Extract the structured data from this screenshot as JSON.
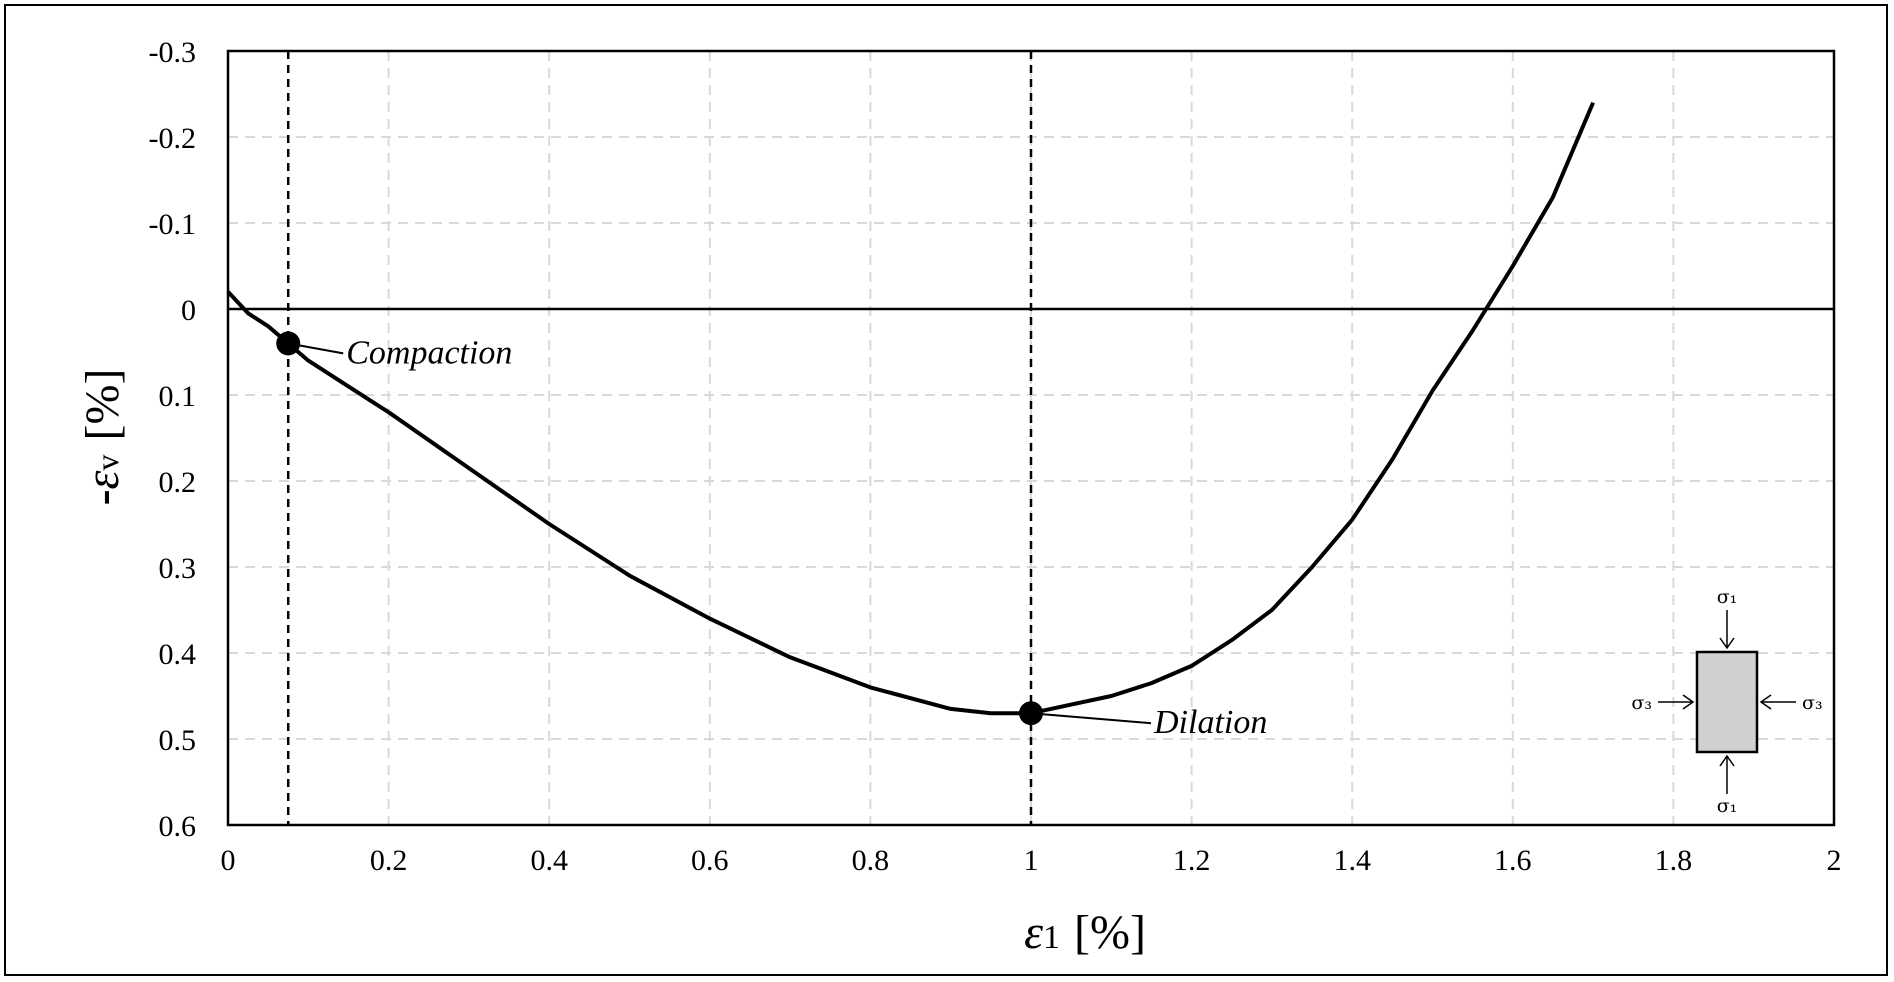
{
  "chart_data": {
    "type": "line",
    "title": "",
    "xlabel": {
      "symbol": "ε",
      "subscript": "1",
      "unit": "[%]"
    },
    "ylabel": {
      "prefix": "-",
      "symbol": "ε",
      "subscript": "v",
      "unit": "[%]"
    },
    "xlim": [
      0,
      2
    ],
    "ylim": [
      -0.3,
      0.6
    ],
    "y_inverted": true,
    "x_ticks": [
      0,
      0.2,
      0.4,
      0.6,
      0.8,
      1,
      1.2,
      1.4,
      1.6,
      1.8,
      2
    ],
    "x_tick_labels": [
      "0",
      "0.2",
      "0.4",
      "0.6",
      "0.8",
      "1",
      "1.2",
      "1.4",
      "1.6",
      "1.8",
      "2"
    ],
    "y_ticks": [
      -0.3,
      -0.2,
      -0.1,
      0,
      0.1,
      0.2,
      0.3,
      0.4,
      0.5,
      0.6
    ],
    "y_tick_labels": [
      "-0.3",
      "-0.2",
      "-0.1",
      "0",
      "0.1",
      "0.2",
      "0.3",
      "0.4",
      "0.5",
      "0.6"
    ],
    "grid": true,
    "zero_line": 0,
    "series": [
      {
        "x": [
          0,
          0.025,
          0.05,
          0.075,
          0.1,
          0.15,
          0.2,
          0.3,
          0.4,
          0.5,
          0.6,
          0.7,
          0.8,
          0.9,
          0.95,
          1.0,
          1.05,
          1.1,
          1.15,
          1.2,
          1.25,
          1.3,
          1.35,
          1.4,
          1.45,
          1.5,
          1.55,
          1.6,
          1.65,
          1.7
        ],
        "y": [
          -0.02,
          0.005,
          0.02,
          0.04,
          0.06,
          0.09,
          0.12,
          0.185,
          0.25,
          0.31,
          0.36,
          0.405,
          0.44,
          0.465,
          0.47,
          0.47,
          0.46,
          0.45,
          0.435,
          0.415,
          0.385,
          0.35,
          0.3,
          0.245,
          0.175,
          0.095,
          0.025,
          -0.05,
          -0.13,
          -0.24
        ]
      }
    ],
    "vlines": [
      0.075,
      1.0
    ],
    "annotations": [
      {
        "text": "Compaction",
        "x": 0.075,
        "y": 0.04
      },
      {
        "text": "Dilation",
        "x": 1.0,
        "y": 0.47
      }
    ],
    "inset": {
      "top": "σ₁",
      "bottom": "σ₁",
      "left": "σ₃",
      "right": "σ₃"
    }
  }
}
